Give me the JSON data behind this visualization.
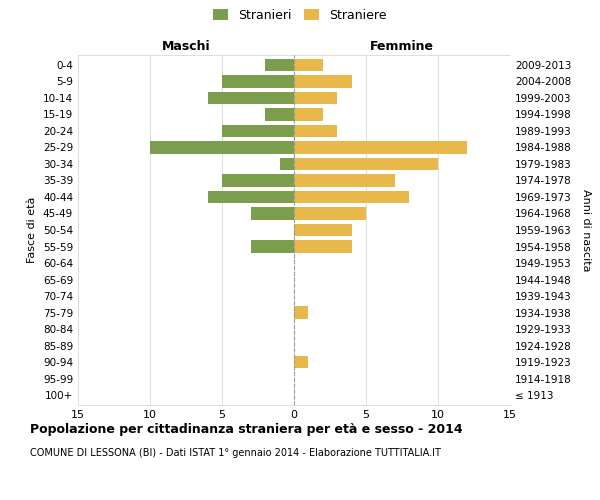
{
  "age_groups": [
    "100+",
    "95-99",
    "90-94",
    "85-89",
    "80-84",
    "75-79",
    "70-74",
    "65-69",
    "60-64",
    "55-59",
    "50-54",
    "45-49",
    "40-44",
    "35-39",
    "30-34",
    "25-29",
    "20-24",
    "15-19",
    "10-14",
    "5-9",
    "0-4"
  ],
  "birth_years": [
    "≤ 1913",
    "1914-1918",
    "1919-1923",
    "1924-1928",
    "1929-1933",
    "1934-1938",
    "1939-1943",
    "1944-1948",
    "1949-1953",
    "1954-1958",
    "1959-1963",
    "1964-1968",
    "1969-1973",
    "1974-1978",
    "1979-1983",
    "1984-1988",
    "1989-1993",
    "1994-1998",
    "1999-2003",
    "2004-2008",
    "2009-2013"
  ],
  "males": [
    0,
    0,
    0,
    0,
    0,
    0,
    0,
    0,
    0,
    3,
    0,
    3,
    6,
    5,
    1,
    10,
    5,
    2,
    6,
    5,
    2
  ],
  "females": [
    0,
    0,
    1,
    0,
    0,
    1,
    0,
    0,
    0,
    4,
    4,
    5,
    8,
    7,
    10,
    12,
    3,
    2,
    3,
    4,
    2
  ],
  "male_color": "#7a9e4e",
  "female_color": "#e8b84b",
  "background_color": "#ffffff",
  "grid_color": "#d0d0d0",
  "title": "Popolazione per cittadinanza straniera per età e sesso - 2014",
  "subtitle": "COMUNE DI LESSONA (BI) - Dati ISTAT 1° gennaio 2014 - Elaborazione TUTTITALIA.IT",
  "xlabel_left": "Maschi",
  "xlabel_right": "Femmine",
  "ylabel_left": "Fasce di età",
  "ylabel_right": "Anni di nascita",
  "legend_male": "Stranieri",
  "legend_female": "Straniere",
  "xlim": 15,
  "bar_height": 0.75
}
